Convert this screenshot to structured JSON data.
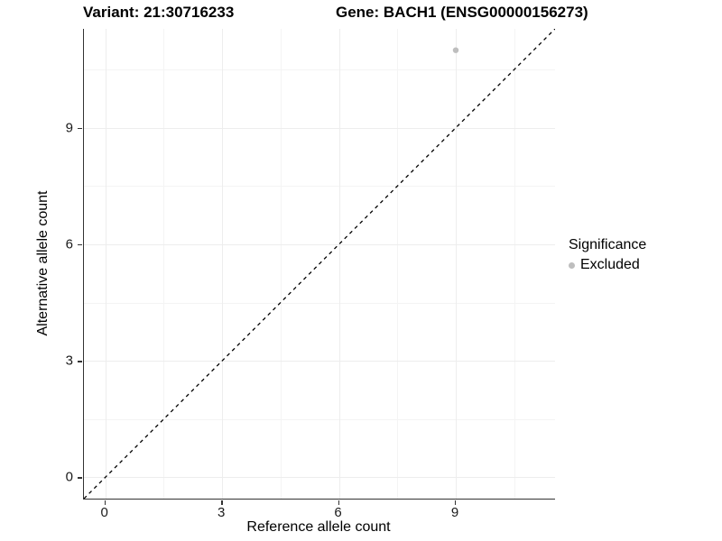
{
  "header": {
    "title_left": "Variant: 21:30716233",
    "title_right": "Gene: BACH1 (ENSG00000156273)"
  },
  "chart_data": {
    "type": "scatter",
    "title": "Variant: 21:30716233  Gene: BACH1 (ENSG00000156273)",
    "xlabel": "Reference allele count",
    "ylabel": "Alternative allele count",
    "xlim": [
      -0.55,
      11.55
    ],
    "ylim": [
      -0.55,
      11.55
    ],
    "x_major_ticks": [
      0,
      3,
      6,
      9
    ],
    "y_major_ticks": [
      0,
      3,
      6,
      9
    ],
    "x_minor_ticks": [
      1.5,
      4.5,
      7.5,
      10.5
    ],
    "y_minor_ticks": [
      1.5,
      4.5,
      7.5,
      10.5
    ],
    "grid": true,
    "points": [
      {
        "x": 9,
        "y": 11,
        "significance": "Excluded",
        "color": "#bebebe",
        "radius": 3.2
      }
    ],
    "reference_line": {
      "type": "identity",
      "equation": "y = x",
      "style": "dashed",
      "color": "#000000"
    },
    "legend": {
      "title": "Significance",
      "position": "right",
      "entries": [
        {
          "label": "Excluded",
          "color": "#bebebe"
        }
      ]
    },
    "colors": {
      "axis_line": "#333333",
      "grid_major": "#ededed",
      "grid_minor": "#f4f4f4",
      "excluded_point": "#bebebe"
    }
  }
}
